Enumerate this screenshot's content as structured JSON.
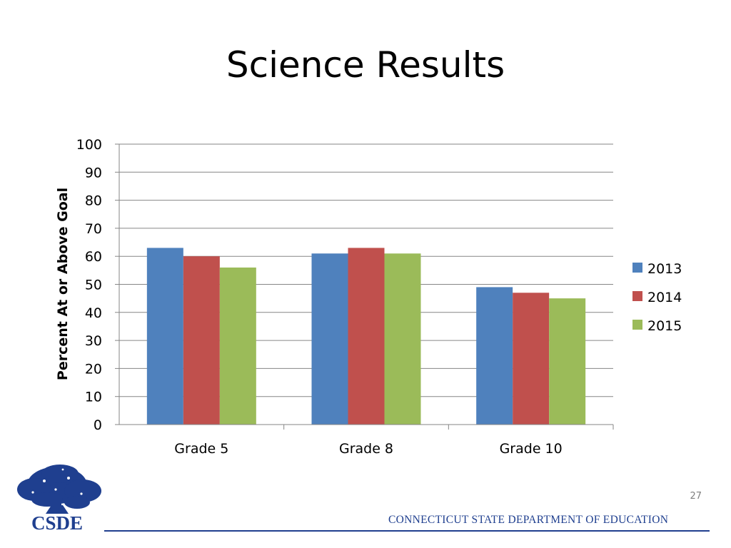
{
  "slide": {
    "title": "Science Results",
    "page_number": "27",
    "footer": "CONNECTICUT STATE DEPARTMENT OF EDUCATION",
    "logo_text": "CSDE"
  },
  "colors": {
    "2013": "#4f81bd",
    "2014": "#c0504d",
    "2015": "#9bbb59",
    "grid": "#868686",
    "footer_blue": "#1f3f8f"
  },
  "chart_data": {
    "type": "bar",
    "title": "",
    "xlabel": "",
    "ylabel": "Percent At or Above Goal",
    "ylim": [
      0,
      100
    ],
    "yticks": [
      0,
      10,
      20,
      30,
      40,
      50,
      60,
      70,
      80,
      90,
      100
    ],
    "grid": true,
    "legend_position": "right",
    "categories": [
      "Grade 5",
      "Grade 8",
      "Grade 10"
    ],
    "series": [
      {
        "name": "2013",
        "values": [
          63,
          61,
          49
        ]
      },
      {
        "name": "2014",
        "values": [
          60,
          63,
          47
        ]
      },
      {
        "name": "2015",
        "values": [
          56,
          61,
          45
        ]
      }
    ]
  }
}
